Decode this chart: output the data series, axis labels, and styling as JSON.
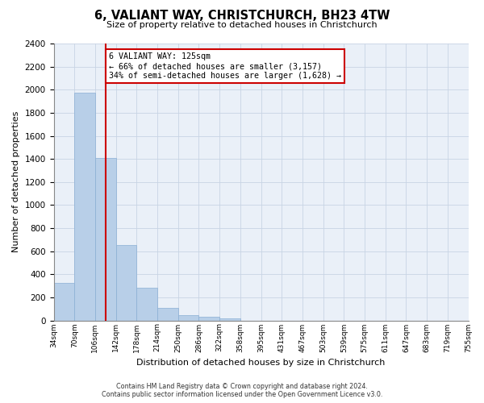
{
  "title": "6, VALIANT WAY, CHRISTCHURCH, BH23 4TW",
  "subtitle": "Size of property relative to detached houses in Christchurch",
  "xlabel": "Distribution of detached houses by size in Christchurch",
  "ylabel": "Number of detached properties",
  "bar_heights": [
    325,
    1975,
    1410,
    650,
    280,
    105,
    45,
    30,
    20,
    0,
    0,
    0,
    0,
    0,
    0,
    0,
    0,
    0,
    0,
    0
  ],
  "n_bins": 20,
  "bar_color": "#b8cfe8",
  "bar_edge_color": "#8aafd4",
  "property_line_color": "#cc0000",
  "property_bin": 2.5,
  "annotation_title": "6 VALIANT WAY: 125sqm",
  "annotation_line1": "← 66% of detached houses are smaller (3,157)",
  "annotation_line2": "34% of semi-detached houses are larger (1,628) →",
  "annotation_box_facecolor": "#ffffff",
  "annotation_box_edgecolor": "#cc0000",
  "ylim": [
    0,
    2400
  ],
  "yticks": [
    0,
    200,
    400,
    600,
    800,
    1000,
    1200,
    1400,
    1600,
    1800,
    2000,
    2200,
    2400
  ],
  "tick_labels": [
    "34sqm",
    "70sqm",
    "106sqm",
    "142sqm",
    "178sqm",
    "214sqm",
    "250sqm",
    "286sqm",
    "322sqm",
    "358sqm",
    "395sqm",
    "431sqm",
    "467sqm",
    "503sqm",
    "539sqm",
    "575sqm",
    "611sqm",
    "647sqm",
    "683sqm",
    "719sqm",
    "755sqm"
  ],
  "footer_line1": "Contains HM Land Registry data © Crown copyright and database right 2024.",
  "footer_line2": "Contains public sector information licensed under the Open Government Licence v3.0.",
  "bg_axes": "#eaf0f8",
  "grid_color": "#c8d4e4"
}
